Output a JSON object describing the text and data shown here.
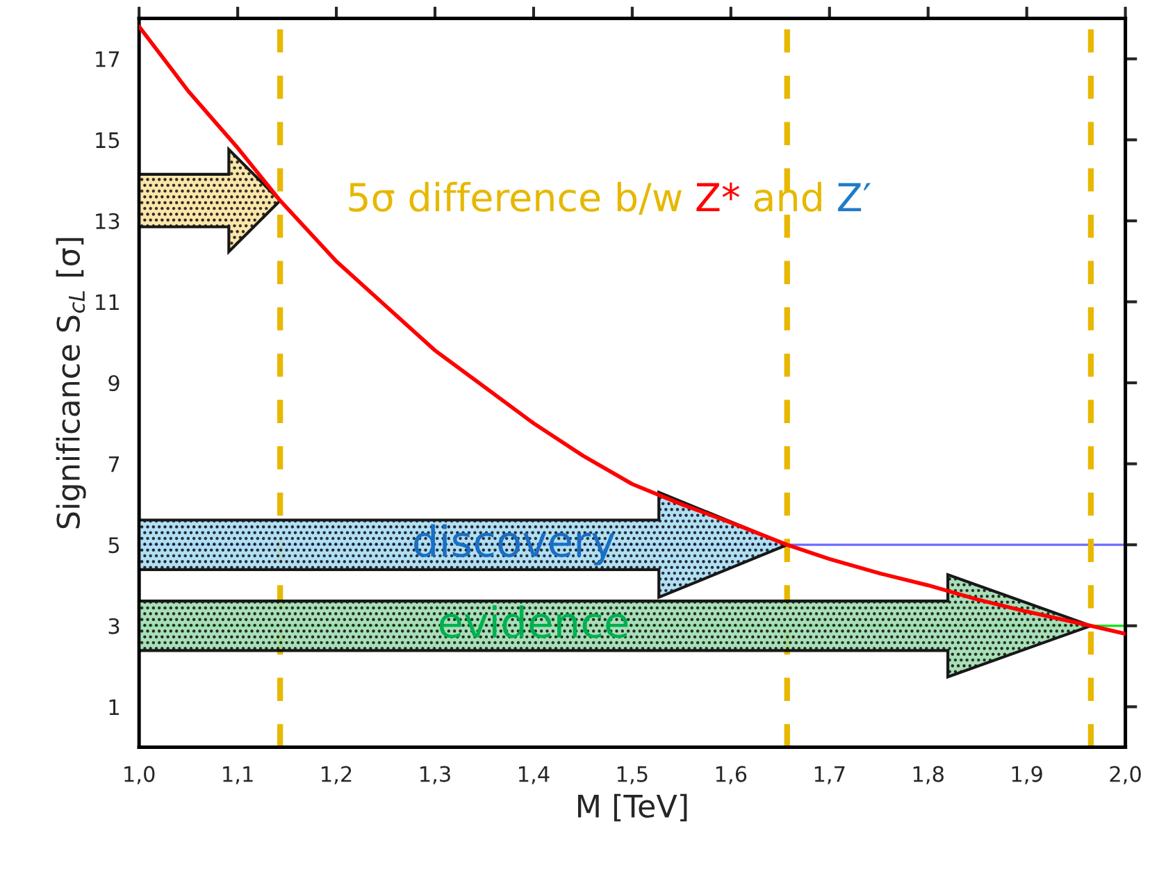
{
  "chart_data": {
    "type": "line",
    "xlabel": "M [TeV]",
    "ylabel": "Significance S$_{cL}$ [σ]",
    "x": [
      1.0,
      1.05,
      1.1,
      1.143,
      1.2,
      1.25,
      1.3,
      1.35,
      1.4,
      1.45,
      1.5,
      1.55,
      1.6,
      1.657,
      1.7,
      1.75,
      1.8,
      1.85,
      1.9,
      1.965,
      2.0
    ],
    "series": [
      {
        "color": "#ff0000",
        "values": [
          17.8,
          16.2,
          14.8,
          13.5,
          12.0,
          10.9,
          9.8,
          8.9,
          8.0,
          7.2,
          6.5,
          6.0,
          5.55,
          5.0,
          4.65,
          4.3,
          4.0,
          3.65,
          3.35,
          3.0,
          2.8
        ]
      }
    ],
    "xlim": [
      1.0,
      2.0
    ],
    "ylim": [
      0,
      18
    ],
    "xticks": [
      {
        "value": 1.0,
        "label": "1,0"
      },
      {
        "value": 1.1,
        "label": "1,1"
      },
      {
        "value": 1.2,
        "label": "1,2"
      },
      {
        "value": 1.3,
        "label": "1,3"
      },
      {
        "value": 1.4,
        "label": "1,4"
      },
      {
        "value": 1.5,
        "label": "1,5"
      },
      {
        "value": 1.6,
        "label": "1,6"
      },
      {
        "value": 1.7,
        "label": "1,7"
      },
      {
        "value": 1.8,
        "label": "1,8"
      },
      {
        "value": 1.9,
        "label": "1,9"
      },
      {
        "value": 2.0,
        "label": "2,0"
      }
    ],
    "yticks": [
      1,
      3,
      5,
      7,
      9,
      11,
      13,
      15,
      17
    ],
    "ref_lines": [
      {
        "axis": "y",
        "value": 5,
        "color": "#6b6bff"
      },
      {
        "axis": "y",
        "value": 3,
        "color": "#22dd22"
      },
      {
        "axis": "x",
        "value": 1.143,
        "color": "#e8b800",
        "line_style": "dashed"
      },
      {
        "axis": "x",
        "value": 1.657,
        "color": "#e8b800",
        "line_style": "dashed"
      },
      {
        "axis": "x",
        "value": 1.965,
        "color": "#e8b800",
        "line_style": "dashed"
      }
    ],
    "annotations": [
      "5σ difference b/w",
      "Z*",
      "and",
      "Z′",
      "discovery",
      "evidence"
    ],
    "grid": false,
    "legend": false,
    "marker": "none",
    "line_style": "solid"
  }
}
